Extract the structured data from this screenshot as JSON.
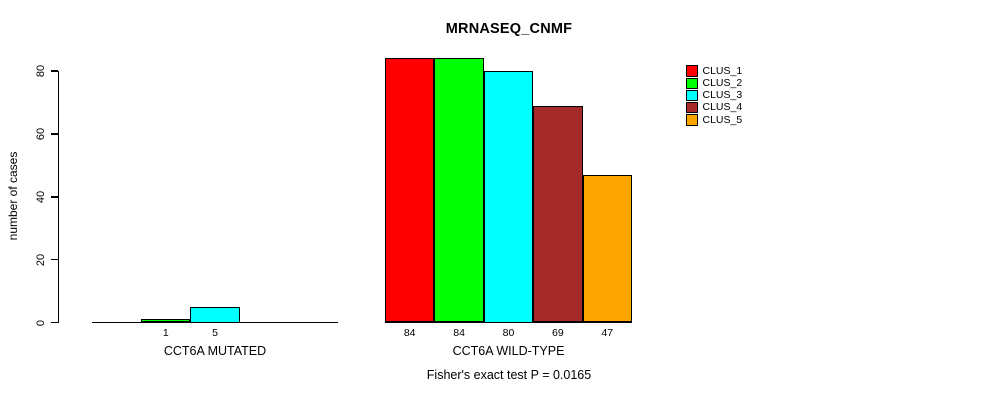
{
  "chart_data": {
    "type": "bar",
    "title": "MRNASEQ_CNMF",
    "ylabel": "number of cases",
    "xlabel": "",
    "ylim": [
      0,
      80
    ],
    "yticks": [
      0,
      20,
      40,
      60,
      80
    ],
    "grid": false,
    "legend_position": "top-right",
    "series_names": [
      "CLUS_1",
      "CLUS_2",
      "CLUS_3",
      "CLUS_4",
      "CLUS_5"
    ],
    "colors": [
      "#FF0000",
      "#00FF00",
      "#00FFFF",
      "#A52A2A",
      "#FFA500"
    ],
    "groups": [
      {
        "label": "CCT6A MUTATED",
        "values": [
          0,
          1,
          5,
          0,
          0
        ],
        "bar_labels": [
          "",
          "1",
          "5",
          "",
          ""
        ]
      },
      {
        "label": "CCT6A WILD-TYPE",
        "values": [
          84,
          84,
          80,
          69,
          47
        ],
        "bar_labels": [
          "84",
          "84",
          "80",
          "69",
          "47"
        ]
      }
    ],
    "annotation": "Fisher's exact test P = 0.0165"
  }
}
